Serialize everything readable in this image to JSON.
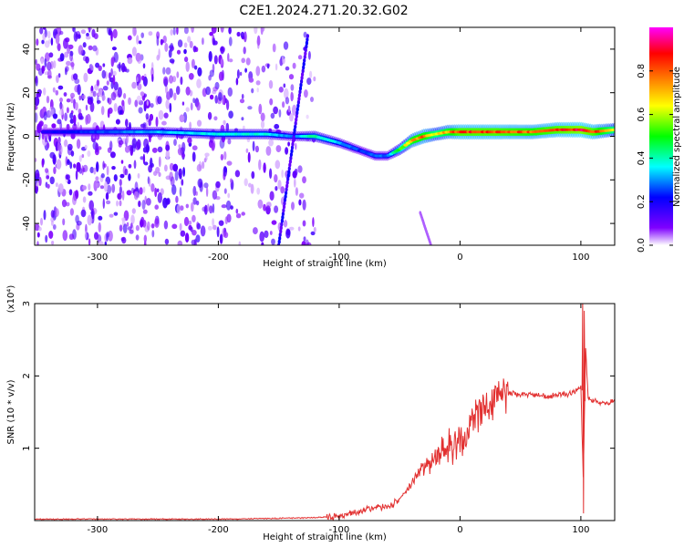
{
  "title": "C2E1.2024.271.20.32.G02",
  "chart_data": [
    {
      "type": "heatmap",
      "title": "C2E1.2024.271.20.32.G02",
      "xlabel": "Height of straight line (km)",
      "ylabel": "Frequency (Hz)",
      "xlim": [
        -352,
        128
      ],
      "ylim": [
        -50,
        50
      ],
      "xticks": [
        -300,
        -200,
        -100,
        0,
        100
      ],
      "xtick_labels": [
        "-300",
        "-200",
        "-100",
        "0",
        "100"
      ],
      "yticks": [
        -40,
        -20,
        0,
        20,
        40
      ],
      "ytick_labels": [
        "-40",
        "-20",
        "0",
        "20",
        "40"
      ],
      "colorbar": {
        "label": "Normalized spectral amplitude",
        "range": [
          0,
          1
        ],
        "ticks": [
          0.0,
          0.2,
          0.4,
          0.6,
          0.8
        ],
        "tick_labels": [
          "0.0",
          "0.2",
          "0.4",
          "0.6",
          "0.8"
        ],
        "colors": [
          "#ffffff",
          "#7f00ff",
          "#0000ff",
          "#00ffff",
          "#00ff00",
          "#ffff00",
          "#ff8000",
          "#ff0000",
          "#ff00ff"
        ]
      },
      "ridge": {
        "x": [
          -345,
          -250,
          -200,
          -160,
          -140,
          -120,
          -100,
          -80,
          -70,
          -60,
          -50,
          -40,
          -30,
          -20,
          -10,
          0,
          30,
          60,
          80,
          100,
          110,
          128
        ],
        "y": [
          2,
          2,
          1,
          1,
          0,
          0,
          -3,
          -7,
          -9,
          -9,
          -6,
          -2,
          0,
          1,
          2,
          2,
          2,
          2,
          3,
          3,
          2,
          3
        ],
        "amplitude": [
          0.2,
          0.35,
          0.4,
          0.4,
          0.3,
          0.45,
          0.35,
          0.25,
          0.3,
          0.3,
          0.55,
          0.8,
          0.85,
          0.7,
          0.8,
          0.9,
          0.9,
          0.85,
          0.9,
          0.95,
          0.9,
          0.7
        ]
      },
      "diagonal_streaks": [
        {
          "x": [
            -150,
            -126
          ],
          "y": [
            -50,
            46
          ]
        },
        {
          "x": [
            -33,
            -24
          ],
          "y": [
            -35,
            -50
          ]
        }
      ]
    },
    {
      "type": "line",
      "xlabel": "Height of straight line (km)",
      "ylabel": "SNR (10 * v/v)",
      "yscale_label": "(x10⁴)",
      "xlim": [
        -352,
        128
      ],
      "ylim": [
        0,
        3
      ],
      "xticks": [
        -300,
        -200,
        -100,
        0,
        100
      ],
      "xtick_labels": [
        "-300",
        "-200",
        "-100",
        "0",
        "100"
      ],
      "yticks": [
        1,
        2,
        3
      ],
      "ytick_labels": [
        "1",
        "2",
        "3"
      ],
      "color": "#e23030",
      "series": [
        {
          "x": [
            -352,
            -300,
            -250,
            -200,
            -150,
            -120,
            -100,
            -90,
            -80,
            -70,
            -60,
            -50,
            -45,
            -40,
            -35,
            -30,
            -25,
            -20,
            -15,
            -10,
            -5,
            0,
            5,
            10,
            15,
            20,
            25,
            30,
            35,
            40,
            50,
            60,
            70,
            80,
            90,
            95,
            100,
            102,
            104,
            106,
            110,
            115,
            120,
            128
          ],
          "y": [
            0.02,
            0.02,
            0.02,
            0.02,
            0.03,
            0.04,
            0.06,
            0.1,
            0.15,
            0.18,
            0.18,
            0.3,
            0.4,
            0.5,
            0.65,
            0.75,
            0.8,
            0.9,
            0.95,
            1.0,
            1.05,
            1.1,
            1.2,
            1.35,
            1.45,
            1.55,
            1.62,
            1.7,
            1.75,
            1.76,
            1.75,
            1.74,
            1.72,
            1.73,
            1.75,
            1.78,
            1.85,
            0.6,
            2.4,
            1.7,
            1.65,
            1.64,
            1.62,
            1.65
          ]
        }
      ]
    }
  ]
}
